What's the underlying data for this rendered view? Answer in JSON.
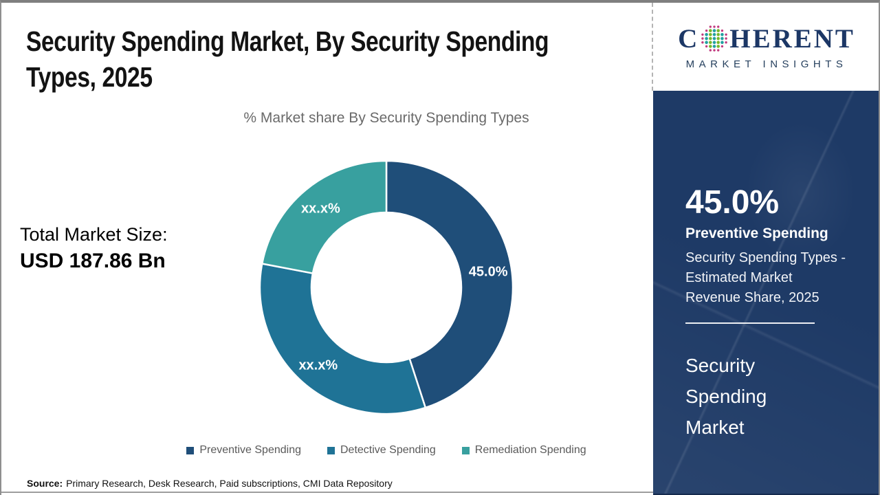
{
  "header": {
    "title": "Security Spending Market, By Security Spending Types, 2025",
    "title_lines": [
      "Security Spending Market, By Security Spending",
      "Types, 2025"
    ]
  },
  "logo": {
    "word_start": "C",
    "word_end": "HERENT",
    "subtitle": "MARKET INSIGHTS",
    "navy": "#1c3766",
    "globe_colors": {
      "rim": "#c13a7e",
      "teal": "#21a0a0",
      "green": "#76b82a"
    }
  },
  "market_size": {
    "label": "Total Market Size:",
    "value": "USD 187.86 Bn"
  },
  "chart_data": {
    "type": "pie",
    "donut": true,
    "title": "% Market share By Security Spending Types",
    "start_angle_deg": 0,
    "legend_position": "bottom",
    "slices": [
      {
        "name": "Preventive Spending",
        "value_pct": 45.0,
        "label": "45.0%",
        "color": "#1f4e79"
      },
      {
        "name": "Detective Spending",
        "value_pct": 33.0,
        "label": "xx.x%",
        "color": "#1f7396"
      },
      {
        "name": "Remediation Spending",
        "value_pct": 22.0,
        "label": "xx.x%",
        "color": "#38a09f"
      }
    ],
    "note": "Detective and Remediation shares are masked as xx.x% in the figure; 33.0 and 22.0 are estimated from arc angles"
  },
  "sidebar": {
    "background": "#1e3a66",
    "highlight_value": "45.0%",
    "highlight_segment": "Preventive Spending",
    "highlight_desc_lines": [
      "Security Spending Types -",
      "Estimated Market",
      "Revenue Share, 2025"
    ],
    "report_name_lines": [
      "Security",
      "Spending",
      "Market"
    ]
  },
  "footer": {
    "source_label": "Source:",
    "source_text": "Primary Research, Desk Research, Paid subscriptions, CMI Data Repository"
  }
}
